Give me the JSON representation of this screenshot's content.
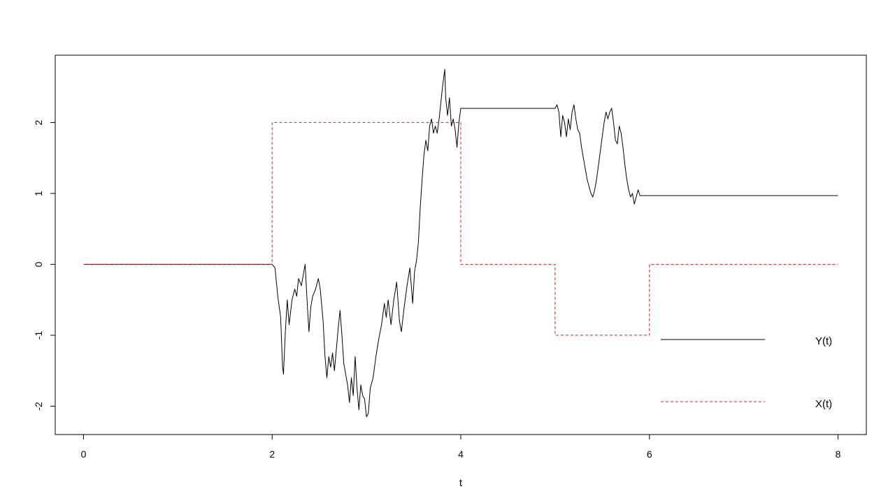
{
  "chart_data": {
    "type": "line",
    "title": "",
    "xlabel": "t",
    "ylabel": "",
    "xlim": [
      -0.3,
      8.3
    ],
    "ylim": [
      -2.4,
      2.95
    ],
    "x_ticks": [
      0,
      2,
      4,
      6,
      8
    ],
    "y_ticks": [
      -2,
      -1,
      0,
      1,
      2
    ],
    "x_tick_labels": [
      "0",
      "2",
      "4",
      "6",
      "8"
    ],
    "y_tick_labels": [
      "-2",
      "-1",
      "0",
      "1",
      "2"
    ],
    "grid": false,
    "legend_position": "bottom-right",
    "series": [
      {
        "name": "Y(t)",
        "color": "#000000",
        "style": "solid",
        "points": [
          [
            0,
            0
          ],
          [
            2.0,
            0
          ],
          [
            2.03,
            -0.05
          ],
          [
            2.06,
            -0.45
          ],
          [
            2.09,
            -0.75
          ],
          [
            2.11,
            -1.45
          ],
          [
            2.12,
            -1.55
          ],
          [
            2.14,
            -0.95
          ],
          [
            2.16,
            -0.5
          ],
          [
            2.18,
            -0.85
          ],
          [
            2.21,
            -0.5
          ],
          [
            2.24,
            -0.35
          ],
          [
            2.26,
            -0.45
          ],
          [
            2.28,
            -0.2
          ],
          [
            2.31,
            -0.3
          ],
          [
            2.33,
            -0.15
          ],
          [
            2.35,
            0.0
          ],
          [
            2.37,
            -0.5
          ],
          [
            2.39,
            -0.95
          ],
          [
            2.41,
            -0.6
          ],
          [
            2.43,
            -0.45
          ],
          [
            2.46,
            -0.35
          ],
          [
            2.49,
            -0.2
          ],
          [
            2.51,
            -0.35
          ],
          [
            2.54,
            -0.8
          ],
          [
            2.56,
            -1.3
          ],
          [
            2.58,
            -1.6
          ],
          [
            2.6,
            -1.3
          ],
          [
            2.62,
            -1.45
          ],
          [
            2.64,
            -1.25
          ],
          [
            2.66,
            -1.5
          ],
          [
            2.68,
            -1.2
          ],
          [
            2.7,
            -0.9
          ],
          [
            2.72,
            -0.65
          ],
          [
            2.74,
            -1.0
          ],
          [
            2.76,
            -1.4
          ],
          [
            2.78,
            -1.55
          ],
          [
            2.8,
            -1.7
          ],
          [
            2.82,
            -1.95
          ],
          [
            2.84,
            -1.6
          ],
          [
            2.86,
            -1.85
          ],
          [
            2.88,
            -1.3
          ],
          [
            2.9,
            -1.75
          ],
          [
            2.92,
            -2.05
          ],
          [
            2.94,
            -1.7
          ],
          [
            2.96,
            -1.85
          ],
          [
            2.98,
            -1.9
          ],
          [
            3.0,
            -2.15
          ],
          [
            3.02,
            -2.1
          ],
          [
            3.04,
            -1.75
          ],
          [
            3.07,
            -1.6
          ],
          [
            3.1,
            -1.3
          ],
          [
            3.13,
            -1.05
          ],
          [
            3.16,
            -0.85
          ],
          [
            3.19,
            -0.55
          ],
          [
            3.21,
            -0.75
          ],
          [
            3.23,
            -0.5
          ],
          [
            3.26,
            -0.85
          ],
          [
            3.29,
            -0.5
          ],
          [
            3.32,
            -0.25
          ],
          [
            3.35,
            -0.8
          ],
          [
            3.37,
            -0.95
          ],
          [
            3.4,
            -0.6
          ],
          [
            3.43,
            -0.3
          ],
          [
            3.46,
            -0.05
          ],
          [
            3.49,
            -0.55
          ],
          [
            3.51,
            -0.1
          ],
          [
            3.53,
            0.05
          ],
          [
            3.55,
            0.3
          ],
          [
            3.57,
            0.8
          ],
          [
            3.59,
            1.2
          ],
          [
            3.61,
            1.55
          ],
          [
            3.63,
            1.75
          ],
          [
            3.65,
            1.6
          ],
          [
            3.67,
            1.95
          ],
          [
            3.69,
            2.05
          ],
          [
            3.71,
            1.85
          ],
          [
            3.73,
            1.95
          ],
          [
            3.75,
            1.85
          ],
          [
            3.77,
            2.05
          ],
          [
            3.79,
            2.3
          ],
          [
            3.81,
            2.55
          ],
          [
            3.83,
            2.75
          ],
          [
            3.84,
            2.35
          ],
          [
            3.86,
            2.1
          ],
          [
            3.88,
            2.35
          ],
          [
            3.9,
            1.95
          ],
          [
            3.92,
            2.05
          ],
          [
            3.94,
            1.9
          ],
          [
            3.96,
            1.65
          ],
          [
            3.98,
            2.0
          ],
          [
            4.0,
            2.2
          ],
          [
            5.0,
            2.2
          ],
          [
            5.02,
            2.25
          ],
          [
            5.04,
            2.15
          ],
          [
            5.06,
            1.8
          ],
          [
            5.08,
            2.1
          ],
          [
            5.1,
            2.0
          ],
          [
            5.12,
            1.8
          ],
          [
            5.14,
            2.05
          ],
          [
            5.16,
            1.9
          ],
          [
            5.18,
            2.15
          ],
          [
            5.2,
            2.25
          ],
          [
            5.22,
            2.05
          ],
          [
            5.24,
            1.9
          ],
          [
            5.26,
            1.85
          ],
          [
            5.28,
            1.65
          ],
          [
            5.3,
            1.5
          ],
          [
            5.32,
            1.35
          ],
          [
            5.34,
            1.2
          ],
          [
            5.36,
            1.1
          ],
          [
            5.38,
            1.0
          ],
          [
            5.4,
            0.95
          ],
          [
            5.42,
            1.05
          ],
          [
            5.44,
            1.2
          ],
          [
            5.46,
            1.4
          ],
          [
            5.48,
            1.6
          ],
          [
            5.5,
            1.8
          ],
          [
            5.52,
            2.0
          ],
          [
            5.54,
            2.15
          ],
          [
            5.56,
            2.05
          ],
          [
            5.58,
            2.15
          ],
          [
            5.6,
            2.2
          ],
          [
            5.62,
            2.0
          ],
          [
            5.64,
            1.75
          ],
          [
            5.66,
            1.7
          ],
          [
            5.68,
            1.95
          ],
          [
            5.7,
            1.85
          ],
          [
            5.72,
            1.65
          ],
          [
            5.74,
            1.4
          ],
          [
            5.76,
            1.2
          ],
          [
            5.78,
            1.05
          ],
          [
            5.8,
            0.95
          ],
          [
            5.82,
            1.0
          ],
          [
            5.84,
            0.85
          ],
          [
            5.86,
            0.95
          ],
          [
            5.88,
            1.05
          ],
          [
            5.9,
            0.97
          ],
          [
            6.0,
            0.97
          ],
          [
            8.0,
            0.97
          ]
        ]
      },
      {
        "name": "X(t)",
        "color": "#dd1c1c",
        "style": "dashed",
        "points": [
          [
            0,
            0
          ],
          [
            2,
            0
          ],
          [
            2,
            2
          ],
          [
            4,
            2
          ],
          [
            4,
            0
          ],
          [
            5,
            0
          ],
          [
            5,
            -1
          ],
          [
            6,
            -1
          ],
          [
            6,
            0
          ],
          [
            8,
            0
          ]
        ]
      }
    ]
  }
}
